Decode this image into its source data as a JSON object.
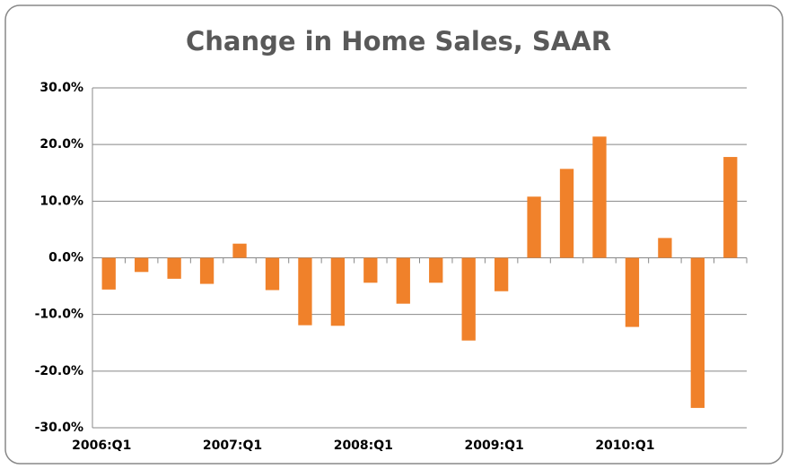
{
  "chart_data": {
    "type": "bar",
    "title": "Change in Home Sales, SAAR",
    "categories": [
      "2006:Q1",
      null,
      null,
      null,
      "2007:Q1",
      null,
      null,
      null,
      "2008:Q1",
      null,
      null,
      null,
      "2009:Q1",
      null,
      null,
      null,
      "2010:Q1",
      null,
      null,
      null
    ],
    "values": [
      -5.6,
      -2.5,
      -3.7,
      -4.6,
      2.5,
      -5.7,
      -11.9,
      -12.0,
      -4.4,
      -8.1,
      -4.4,
      -14.6,
      -5.9,
      10.8,
      15.7,
      21.4,
      -12.2,
      3.5,
      -26.5,
      17.8
    ],
    "color": "#f0812a",
    "ylim": [
      -30,
      30
    ],
    "yticks": [
      {
        "value": -30,
        "label": "-30.0%"
      },
      {
        "value": -20,
        "label": "-20.0%"
      },
      {
        "value": -10,
        "label": "-10.0%"
      },
      {
        "value": 0,
        "label": "0.0%"
      },
      {
        "value": 10,
        "label": "10.0%"
      },
      {
        "value": 20,
        "label": "20.0%"
      },
      {
        "value": 30,
        "label": "30.0%"
      }
    ],
    "grid": true
  }
}
